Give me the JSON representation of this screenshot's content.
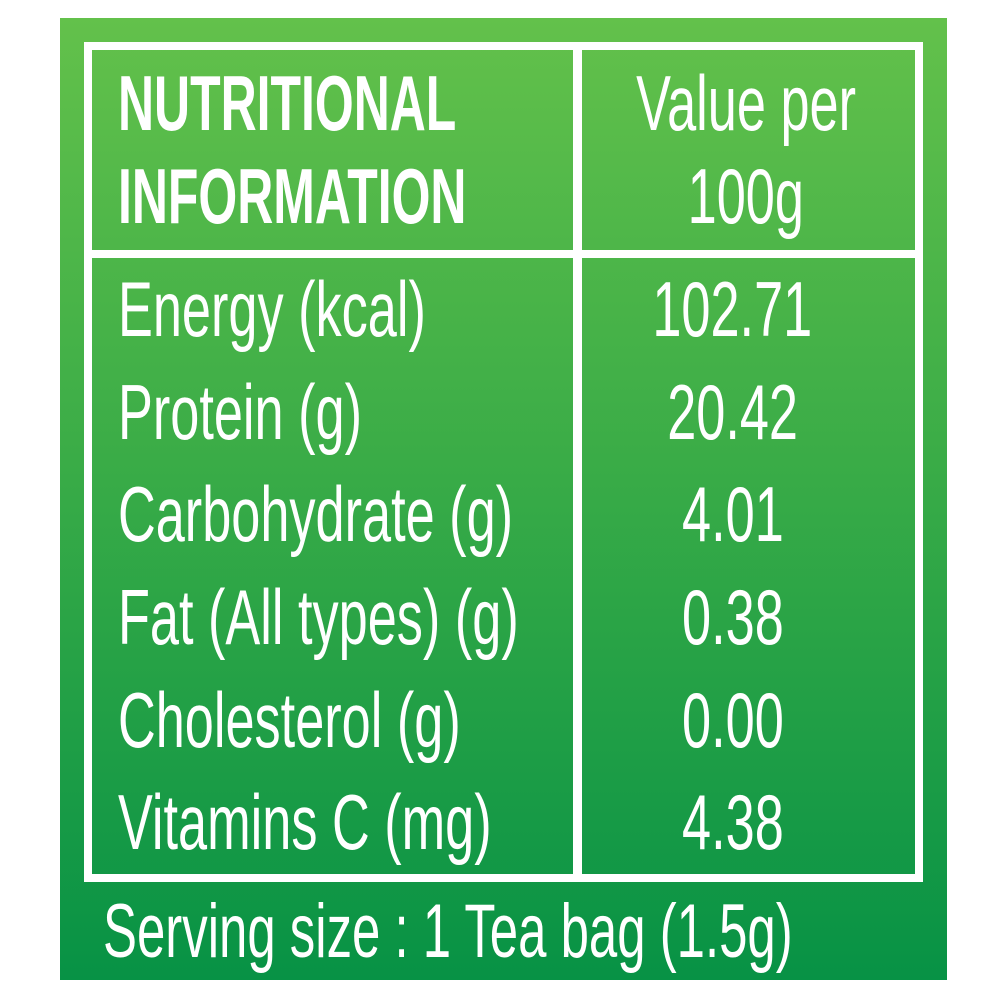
{
  "colors": {
    "green_top": "#63c14b",
    "green_mid": "#3aac47",
    "green_bottom": "#079245",
    "frame": "#ffffff",
    "text": "#ffffff"
  },
  "table": {
    "header": {
      "left_line1": "NUTRITIONAL",
      "left_line2": "INFORMATION",
      "right_line1": "Value per",
      "right_line2": "100g"
    },
    "rows": [
      {
        "label": "Energy (kcal)",
        "value": "102.71"
      },
      {
        "label": "Protein (g)",
        "value": "20.42"
      },
      {
        "label": "Carbohydrate (g)",
        "value": "4.01"
      },
      {
        "label": "Fat (All types) (g)",
        "value": "0.38"
      },
      {
        "label": "Cholesterol (g)",
        "value": "0.00"
      },
      {
        "label": "Vitamins C (mg)",
        "value": "4.38"
      }
    ],
    "serving_size": "Serving size : 1 Tea bag (1.5g)"
  }
}
